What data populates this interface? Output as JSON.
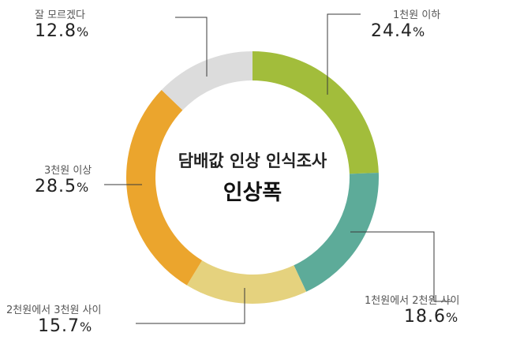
{
  "chart_data": {
    "type": "pie",
    "title": "담배값 인상 인식조사",
    "subtitle": "인상폭",
    "unit": "%",
    "categories": [
      "1천원 이하",
      "1천원에서 2천원 사이",
      "2천원에서 3천원 사이",
      "3천원 이상",
      "잘 모르겠다"
    ],
    "values": [
      24.4,
      18.6,
      15.7,
      28.5,
      12.8
    ],
    "value_labels": [
      "24.4",
      "18.6",
      "15.7",
      "28.5",
      "12.8"
    ],
    "colors": [
      "#a2bd3b",
      "#5dab99",
      "#e5d27e",
      "#eba52d",
      "#dcdcdc"
    ],
    "legend": "none"
  }
}
